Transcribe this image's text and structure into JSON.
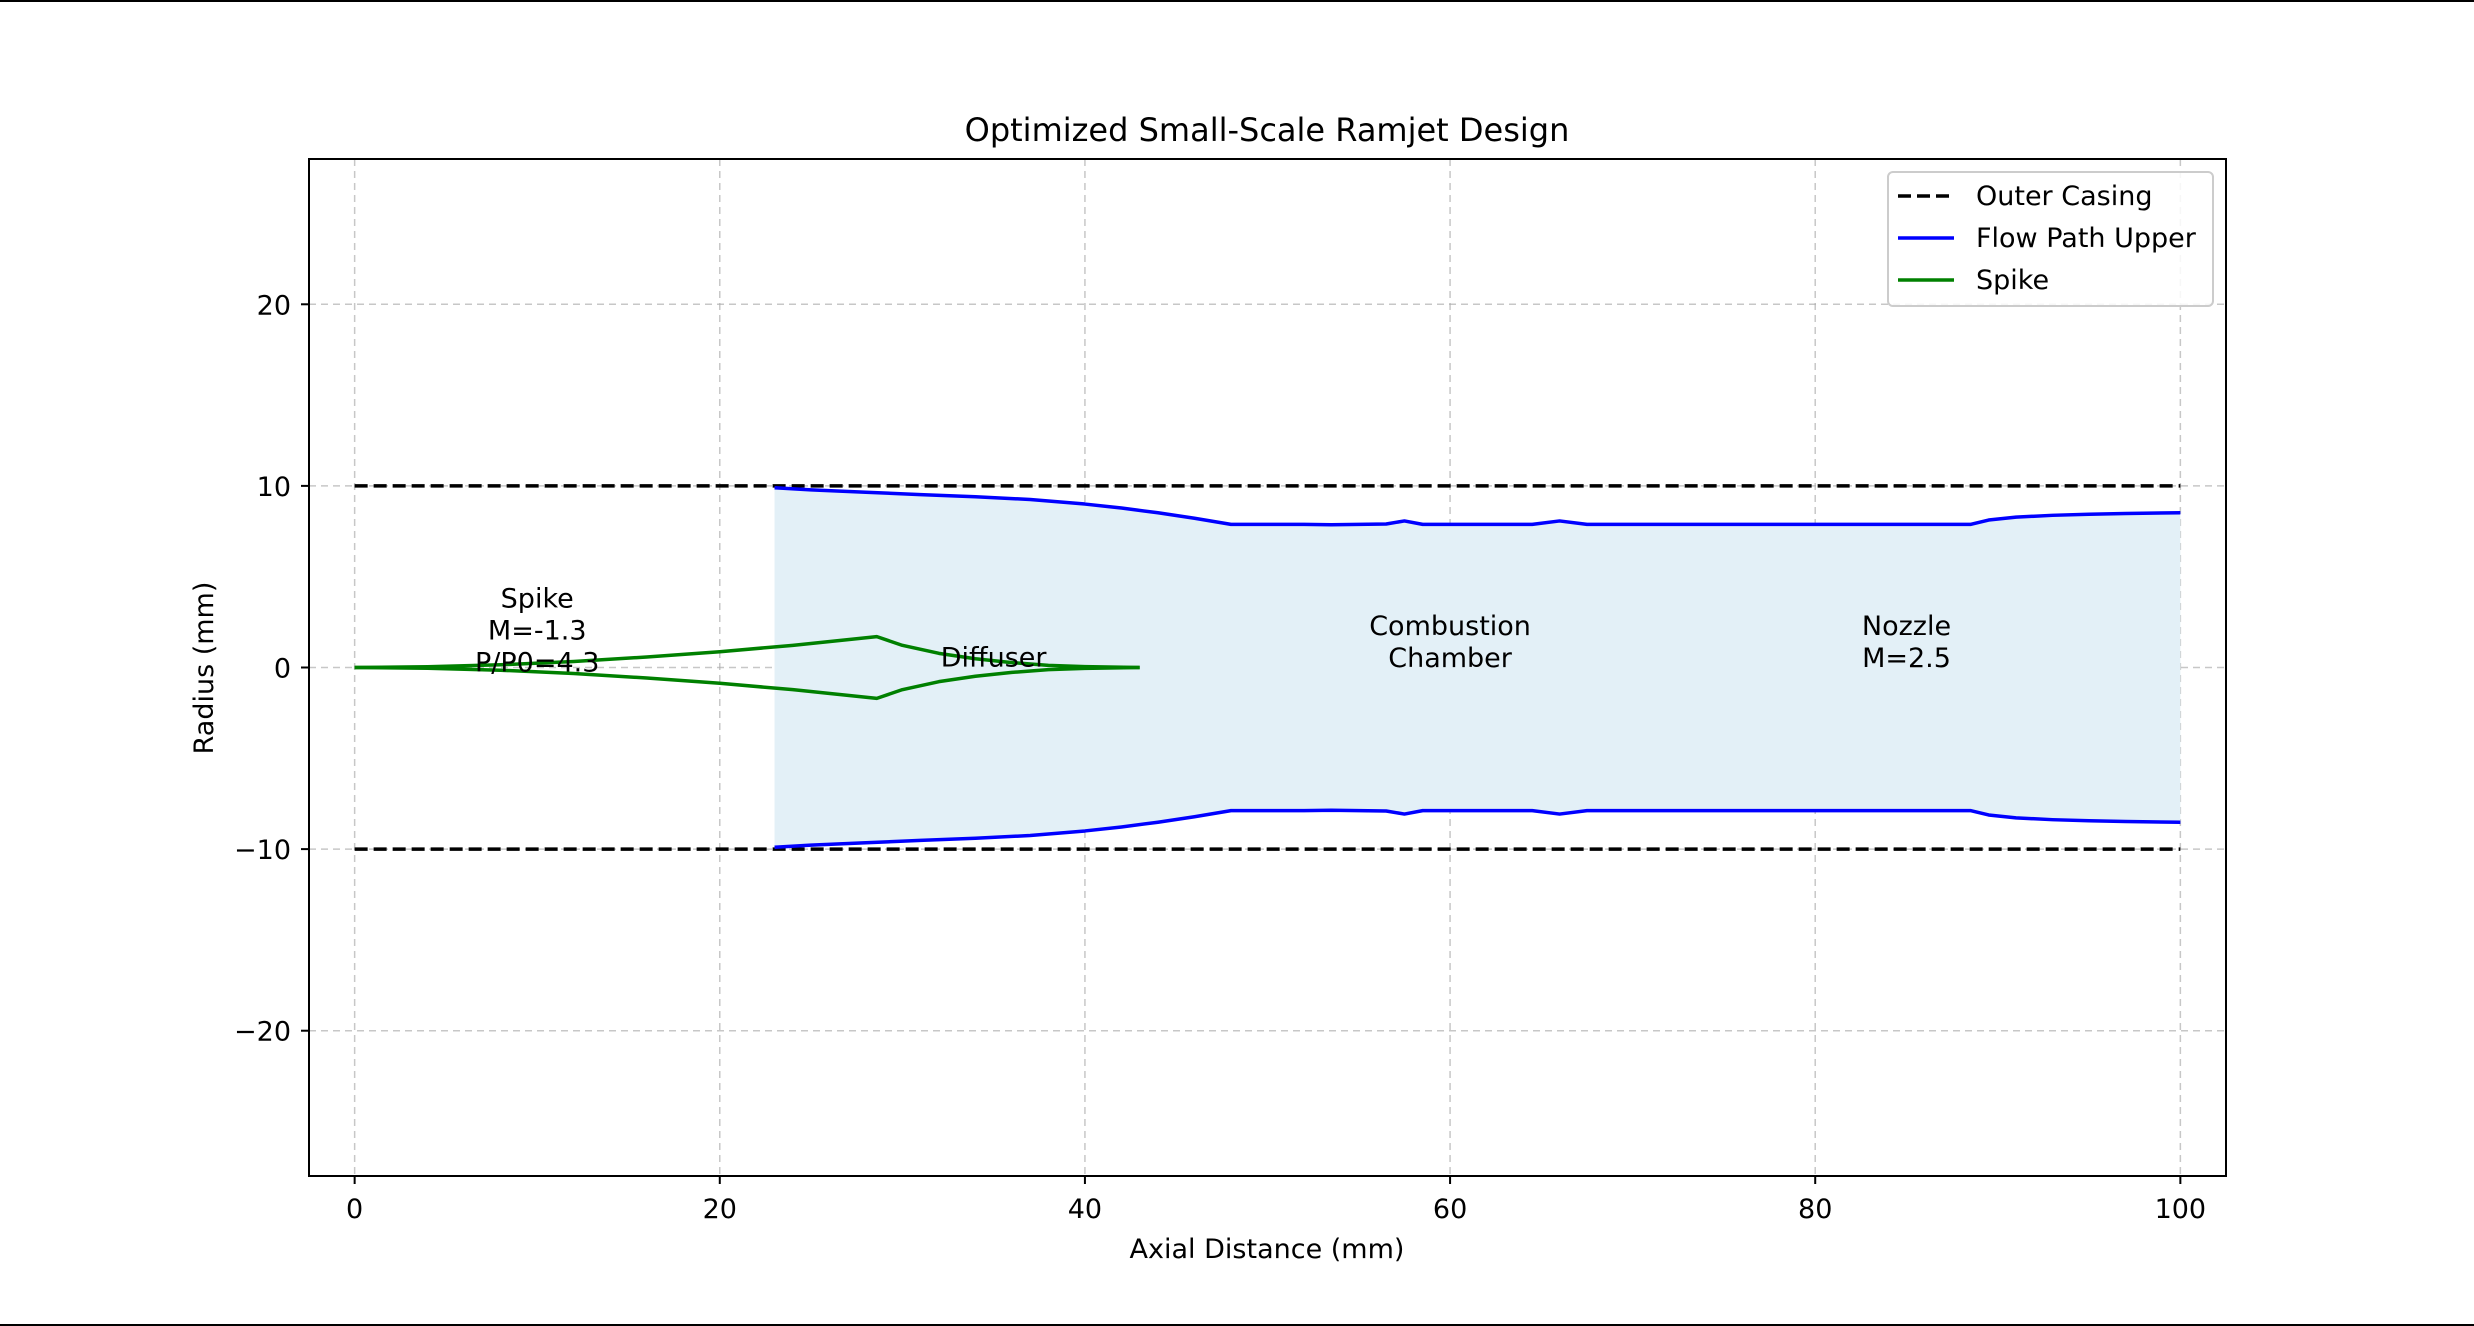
{
  "chart_data": {
    "type": "line",
    "title": "Optimized Small-Scale Ramjet Design",
    "xlabel": "Axial Distance (mm)",
    "ylabel": "Radius (mm)",
    "xlim": [
      -2.5,
      102.5
    ],
    "ylim": [
      -28,
      28
    ],
    "xticks": [
      0,
      20,
      40,
      60,
      80,
      100
    ],
    "yticks": [
      -20,
      -10,
      0,
      10,
      20
    ],
    "xtick_labels": [
      "0",
      "20",
      "40",
      "60",
      "80",
      "100"
    ],
    "ytick_labels": [
      "−20",
      "−10",
      "0",
      "10",
      "20"
    ],
    "grid": true,
    "legend_position": "top-right",
    "colors": {
      "outer_casing": "#000000",
      "flow_path": "#0000ff",
      "spike": "#008000",
      "flow_fill": "#e3f0f7"
    },
    "series": [
      {
        "name": "Outer Casing",
        "style": "dashed",
        "upper": {
          "x": [
            0,
            100
          ],
          "y": [
            10,
            10
          ]
        },
        "lower": {
          "x": [
            0,
            100
          ],
          "y": [
            -10,
            -10
          ]
        }
      },
      {
        "name": "Flow Path Upper",
        "style": "solid",
        "x": [
          23,
          25,
          28,
          31,
          34,
          37,
          40,
          42,
          44,
          46,
          48,
          50,
          52,
          53.5,
          55,
          56.5,
          57.5,
          58.5,
          60,
          62,
          64.5,
          66,
          67.5,
          70,
          75,
          80,
          85,
          88.5,
          89.5,
          91,
          93,
          95,
          97,
          100
        ],
        "y": [
          9.9,
          9.78,
          9.65,
          9.52,
          9.4,
          9.25,
          9.0,
          8.78,
          8.52,
          8.22,
          7.88,
          7.88,
          7.88,
          7.86,
          7.88,
          7.9,
          8.07,
          7.88,
          7.88,
          7.88,
          7.88,
          8.07,
          7.88,
          7.88,
          7.88,
          7.88,
          7.88,
          7.88,
          8.12,
          8.28,
          8.38,
          8.44,
          8.48,
          8.52
        ]
      },
      {
        "name": "Spike",
        "style": "solid",
        "x": [
          0,
          4,
          8,
          12,
          16,
          20,
          24,
          28.6,
          30,
          32,
          34,
          36,
          38,
          40,
          43
        ],
        "y": [
          0,
          0.04,
          0.15,
          0.33,
          0.58,
          0.87,
          1.22,
          1.7,
          1.22,
          0.78,
          0.48,
          0.27,
          0.12,
          0.05,
          0
        ]
      }
    ],
    "flow_fill": {
      "x_start": 23,
      "x_end": 100
    },
    "annotations": [
      {
        "lines": [
          "Spike",
          "M=-1.3",
          "P/P0=4.3"
        ],
        "x": 10,
        "y": 2.05
      },
      {
        "lines": [
          "Diffuser"
        ],
        "x": 35,
        "y": 0.55
      },
      {
        "lines": [
          "Combustion",
          "Chamber"
        ],
        "x": 60,
        "y": 1.4
      },
      {
        "lines": [
          "Nozzle",
          "M=2.5"
        ],
        "x": 85,
        "y": 1.4
      }
    ]
  }
}
